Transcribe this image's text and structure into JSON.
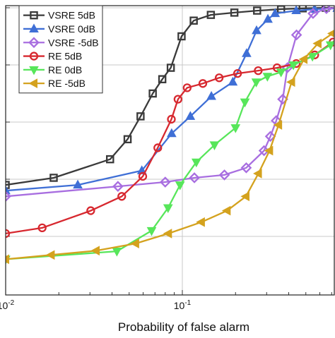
{
  "chart_data": {
    "type": "line",
    "xlabel": "Probability of false alarm",
    "ylabel": "",
    "x_scale": "log",
    "xlim": [
      0.01,
      1.0
    ],
    "ylim": [
      0.0,
      1.0
    ],
    "x_ticks": [
      {
        "value": 0.01,
        "base": "10",
        "exp": "-2"
      },
      {
        "value": 0.1,
        "base": "10",
        "exp": "-1"
      }
    ],
    "y_ticks": [
      0.2,
      0.4,
      0.6,
      0.8,
      1.0
    ],
    "grid": true,
    "legend_position": "top-left",
    "series": [
      {
        "name": "VSRE  5dB",
        "color": "#3a3a3a",
        "marker": "square",
        "points": [
          [
            0.01,
            0.38
          ],
          [
            0.0187,
            0.405
          ],
          [
            0.039,
            0.47
          ],
          [
            0.049,
            0.54
          ],
          [
            0.058,
            0.62
          ],
          [
            0.068,
            0.7
          ],
          [
            0.077,
            0.75
          ],
          [
            0.086,
            0.79
          ],
          [
            0.099,
            0.9
          ],
          [
            0.116,
            0.955
          ],
          [
            0.145,
            0.975
          ],
          [
            0.197,
            0.983
          ],
          [
            0.265,
            0.99
          ],
          [
            0.362,
            0.995
          ],
          [
            0.48,
            0.998
          ],
          [
            0.648,
            1.0
          ],
          [
            0.803,
            1.0
          ],
          [
            1.0,
            1.0
          ]
        ]
      },
      {
        "name": "VSRE  0dB",
        "color": "#3f6fd6",
        "marker": "triangle-up",
        "points": [
          [
            0.01,
            0.36
          ],
          [
            0.0256,
            0.38
          ],
          [
            0.059,
            0.43
          ],
          [
            0.087,
            0.56
          ],
          [
            0.111,
            0.62
          ],
          [
            0.146,
            0.69
          ],
          [
            0.193,
            0.74
          ],
          [
            0.231,
            0.84
          ],
          [
            0.263,
            0.92
          ],
          [
            0.305,
            0.96
          ],
          [
            0.335,
            0.98
          ],
          [
            0.441,
            0.99
          ],
          [
            0.56,
            0.995
          ],
          [
            0.753,
            0.998
          ],
          [
            1.0,
            1.0
          ]
        ]
      },
      {
        "name": "VSRE -5dB",
        "color": "#a86ee0",
        "marker": "diamond",
        "points": [
          [
            0.01,
            0.34
          ],
          [
            0.0432,
            0.375
          ],
          [
            0.08,
            0.39
          ],
          [
            0.117,
            0.405
          ],
          [
            0.173,
            0.415
          ],
          [
            0.23,
            0.44
          ],
          [
            0.29,
            0.5
          ],
          [
            0.315,
            0.55
          ],
          [
            0.34,
            0.605
          ],
          [
            0.37,
            0.68
          ],
          [
            0.393,
            0.79
          ],
          [
            0.443,
            0.905
          ],
          [
            0.549,
            0.98
          ],
          [
            0.654,
            0.997
          ],
          [
            0.762,
            1.0
          ],
          [
            0.869,
            1.0
          ],
          [
            1.0,
            1.0
          ]
        ]
      },
      {
        "name": "RE  5dB",
        "color": "#d7282f",
        "marker": "circle",
        "points": [
          [
            0.01,
            0.21
          ],
          [
            0.0161,
            0.23
          ],
          [
            0.0303,
            0.29
          ],
          [
            0.0454,
            0.34
          ],
          [
            0.0597,
            0.41
          ],
          [
            0.0726,
            0.51
          ],
          [
            0.0867,
            0.61
          ],
          [
            0.0945,
            0.68
          ],
          [
            0.1065,
            0.72
          ],
          [
            0.1306,
            0.735
          ],
          [
            0.1616,
            0.755
          ],
          [
            0.2053,
            0.77
          ],
          [
            0.2688,
            0.78
          ],
          [
            0.3436,
            0.79
          ],
          [
            0.4414,
            0.805
          ],
          [
            0.5614,
            0.835
          ],
          [
            0.7128,
            0.88
          ],
          [
            0.8572,
            0.93
          ],
          [
            1.0,
            0.99
          ]
        ]
      },
      {
        "name": "RE  0dB",
        "color": "#57e65a",
        "marker": "triangle-down",
        "points": [
          [
            0.01,
            0.12
          ],
          [
            0.0426,
            0.148
          ],
          [
            0.067,
            0.22
          ],
          [
            0.083,
            0.3
          ],
          [
            0.097,
            0.38
          ],
          [
            0.12,
            0.46
          ],
          [
            0.152,
            0.52
          ],
          [
            0.2,
            0.58
          ],
          [
            0.226,
            0.67
          ],
          [
            0.262,
            0.74
          ],
          [
            0.303,
            0.76
          ],
          [
            0.362,
            0.775
          ],
          [
            0.425,
            0.8
          ],
          [
            0.545,
            0.83
          ],
          [
            0.69,
            0.87
          ],
          [
            0.843,
            0.92
          ],
          [
            1.0,
            0.97
          ]
        ]
      },
      {
        "name": "RE -5dB",
        "color": "#d4a21e",
        "marker": "triangle-left",
        "points": [
          [
            0.01,
            0.12
          ],
          [
            0.0181,
            0.135
          ],
          [
            0.0325,
            0.15
          ],
          [
            0.0544,
            0.175
          ],
          [
            0.0834,
            0.21
          ],
          [
            0.1281,
            0.25
          ],
          [
            0.1792,
            0.29
          ],
          [
            0.229,
            0.34
          ],
          [
            0.2693,
            0.42
          ],
          [
            0.3115,
            0.5
          ],
          [
            0.3504,
            0.59
          ],
          [
            0.415,
            0.74
          ],
          [
            0.4879,
            0.82
          ],
          [
            0.5858,
            0.875
          ],
          [
            0.7082,
            0.91
          ],
          [
            0.853,
            0.955
          ],
          [
            1.0,
            0.99
          ]
        ]
      }
    ]
  }
}
